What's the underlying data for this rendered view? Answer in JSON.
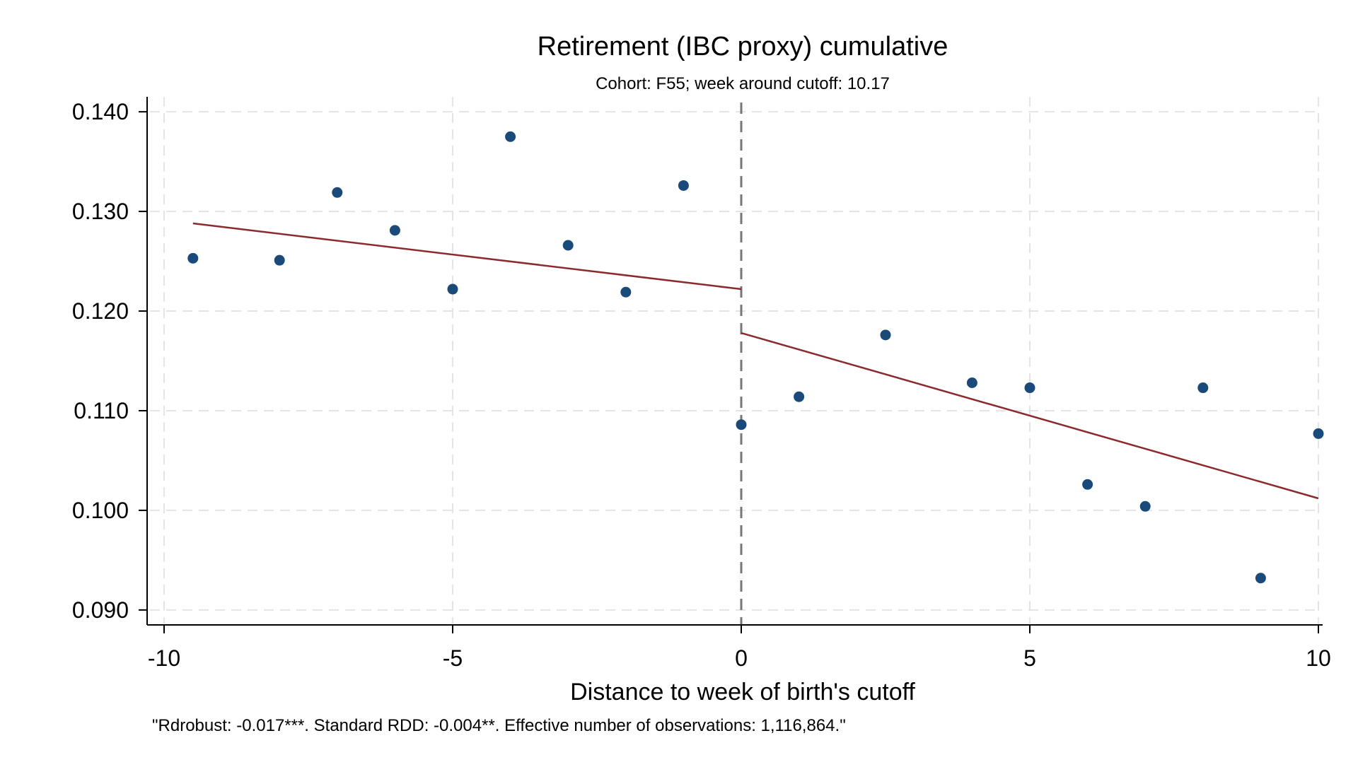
{
  "chart_data": {
    "type": "scatter",
    "title": "Retirement (IBC proxy) cumulative",
    "subtitle": "Cohort: F55; week around cutoff:   10.17",
    "xlabel": "Distance to week of birth's cutoff",
    "ylabel": "",
    "note": "\"Rdrobust: -0.017***. Standard RDD: -0.004**. Effective number of observations: 1,116,864.\"",
    "xlim": [
      -10,
      10
    ],
    "ylim": [
      0.0885,
      0.1415
    ],
    "xticks": [
      -10,
      -5,
      0,
      5,
      10
    ],
    "xtick_labels": [
      "-10",
      "-5",
      "0",
      "5",
      "10"
    ],
    "yticks": [
      0.09,
      0.1,
      0.11,
      0.12,
      0.13,
      0.14
    ],
    "ytick_labels": [
      "0.090",
      "0.100",
      "0.110",
      "0.120",
      "0.130",
      "0.140"
    ],
    "grid": true,
    "cutoff_x": 0,
    "colors": {
      "points": "#1a4a7a",
      "fit": "#8b2a2f",
      "cutoff": "#777777",
      "grid": "#e4e4e4",
      "axis": "#000000"
    },
    "series": [
      {
        "values": [
          {
            "x": -9.5,
            "y": 0.1253
          },
          {
            "x": -8.0,
            "y": 0.1251
          },
          {
            "x": -7.0,
            "y": 0.1319
          },
          {
            "x": -6.0,
            "y": 0.1281
          },
          {
            "x": -5.0,
            "y": 0.1222
          },
          {
            "x": -4.0,
            "y": 0.1375
          },
          {
            "x": -3.0,
            "y": 0.1266
          },
          {
            "x": -2.0,
            "y": 0.1219
          },
          {
            "x": -1.0,
            "y": 0.1326
          },
          {
            "x": 0.0,
            "y": 0.1086
          },
          {
            "x": 1.0,
            "y": 0.1114
          },
          {
            "x": 2.5,
            "y": 0.1176
          },
          {
            "x": 4.0,
            "y": 0.1128
          },
          {
            "x": 5.0,
            "y": 0.1123
          },
          {
            "x": 6.0,
            "y": 0.1026
          },
          {
            "x": 7.0,
            "y": 0.1004
          },
          {
            "x": 8.0,
            "y": 0.1123
          },
          {
            "x": 9.0,
            "y": 0.0932
          },
          {
            "x": 10.0,
            "y": 0.1077
          }
        ]
      }
    ],
    "fit_lines": [
      {
        "x": [
          -9.5,
          0.0
        ],
        "y": [
          0.1288,
          0.1222
        ]
      },
      {
        "x": [
          0.0,
          10.0
        ],
        "y": [
          0.1178,
          0.1012
        ]
      }
    ]
  }
}
